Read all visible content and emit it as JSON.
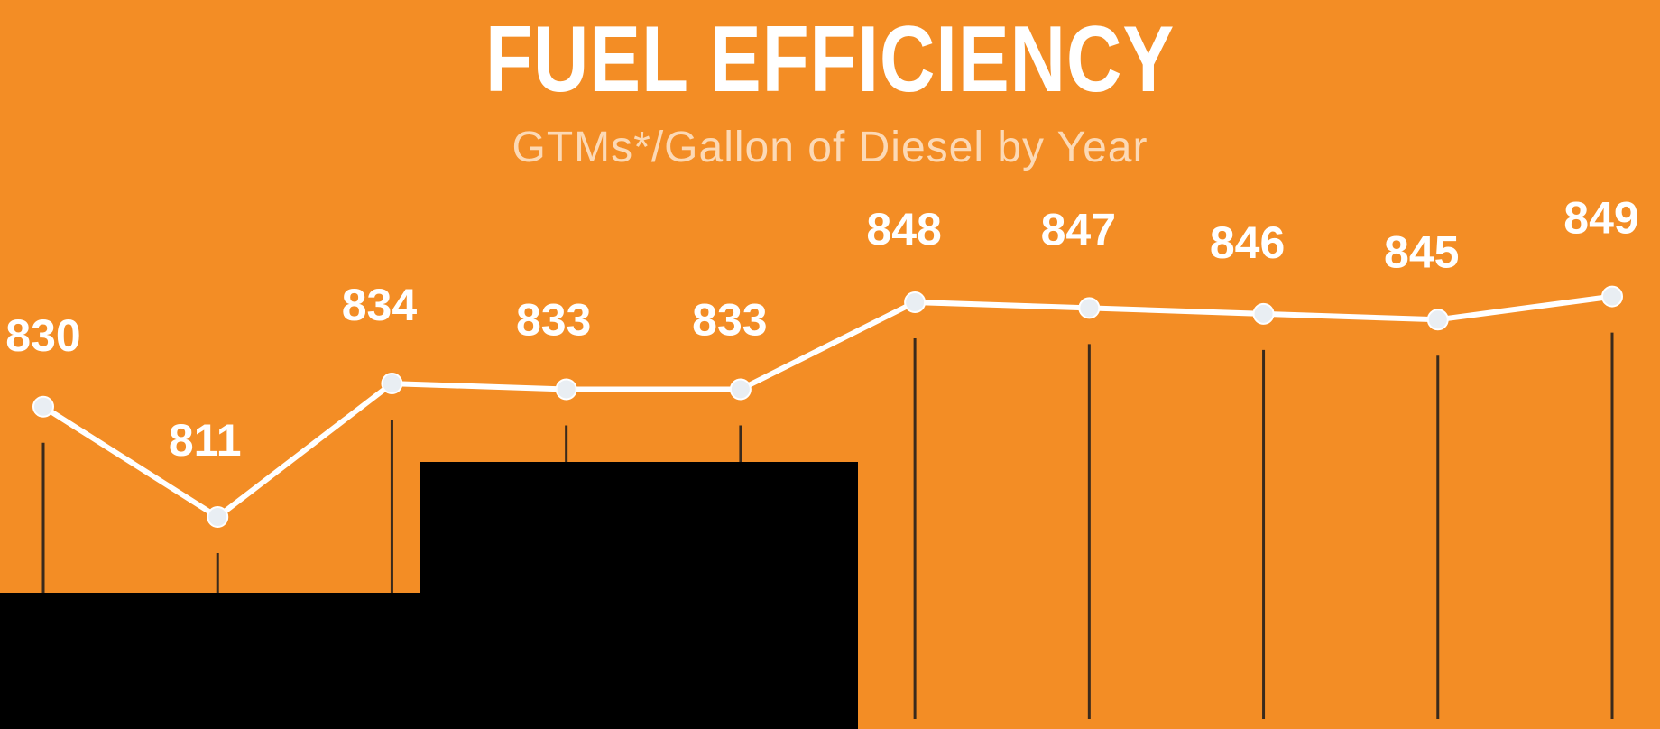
{
  "header": {
    "title": "FUEL EFFICIENCY",
    "subtitle": "GTMs*/Gallon of Diesel by Year"
  },
  "colors": {
    "background": "#F38D25",
    "line": "#FFFFFF",
    "point_fill": "#E9EEF3",
    "stem": "#3A2A1C",
    "redaction": "#000000"
  },
  "chart_data": {
    "type": "line",
    "title": "FUEL EFFICIENCY",
    "subtitle": "GTMs*/Gallon of Diesel by Year",
    "xlabel": "",
    "ylabel": "",
    "values": [
      830,
      811,
      834,
      833,
      833,
      848,
      847,
      846,
      845,
      849
    ],
    "data_labels": [
      "830",
      "811",
      "834",
      "833",
      "833",
      "848",
      "847",
      "846",
      "845",
      "849"
    ],
    "ylim": [
      790,
      860
    ],
    "grid": false,
    "legend": "none"
  }
}
